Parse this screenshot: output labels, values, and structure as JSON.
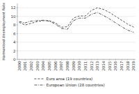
{
  "chart_data": {
    "type": "line",
    "y_label": "Harmonised Unemployment Rate",
    "x": [
      2000,
      2001,
      2002,
      2003,
      2004,
      2005,
      2006,
      2007,
      2008,
      2009,
      2010,
      2011,
      2012,
      2013,
      2014,
      2015,
      2016,
      2017,
      2018,
      2019
    ],
    "series": [
      {
        "name": "Euro area (19 countries)",
        "color": "#555555",
        "line_style": "dashed",
        "values": [
          8.6,
          8.0,
          8.4,
          8.8,
          9.0,
          9.0,
          8.5,
          7.5,
          7.6,
          9.6,
          10.1,
          10.1,
          11.4,
          12.0,
          11.6,
          10.9,
          10.0,
          9.1,
          8.2,
          7.5
        ]
      },
      {
        "name": "European Union (28 countries)",
        "color": "#555555",
        "line_style": "dashdot",
        "values": [
          8.8,
          8.5,
          8.9,
          9.0,
          9.1,
          8.9,
          8.2,
          7.2,
          7.0,
          9.0,
          9.6,
          9.6,
          10.5,
          10.9,
          10.2,
          9.4,
          8.5,
          7.6,
          6.8,
          6.3
        ]
      }
    ],
    "xlim": [
      1999.7,
      2019.3
    ],
    "xticks": [
      2000,
      2001,
      2002,
      2003,
      2004,
      2005,
      2006,
      2007,
      2008,
      2009,
      2010,
      2011,
      2012,
      2013,
      2014,
      2015,
      2016,
      2017,
      2018,
      2019
    ],
    "ylim": [
      0,
      13
    ],
    "yticks": [
      0,
      2,
      4,
      6,
      8,
      10,
      12
    ],
    "grid": "y",
    "legend": "bottom"
  }
}
